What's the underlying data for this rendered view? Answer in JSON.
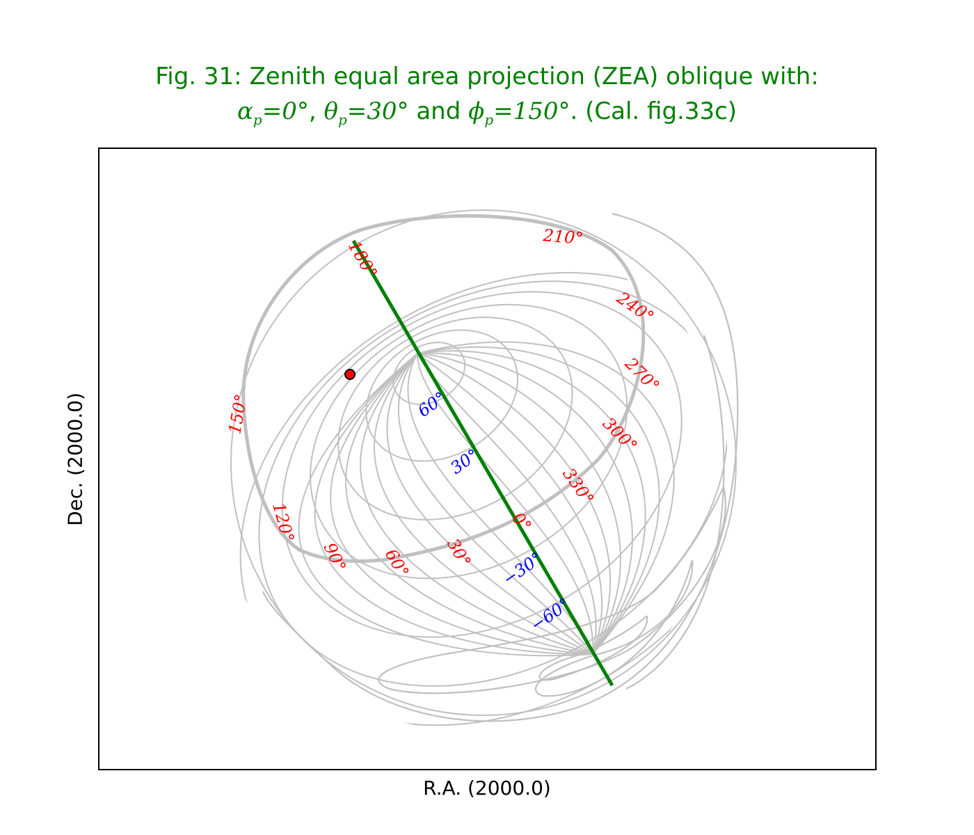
{
  "title_line1": "Fig. 31: Zenith equal area projection (ZEA) oblique with:",
  "title_line2": {
    "alpha": "α",
    "alpha_sub": "p",
    "alpha_eq": "=0°",
    "sep1": ", ",
    "theta": "θ",
    "theta_sub": "p",
    "theta_eq": "=30°",
    "and": " and ",
    "phi": "ϕ",
    "phi_sub": "p",
    "phi_eq": "=150°",
    "tail": ".  (Cal. fig.33c)"
  },
  "xlabel": "R.A. (2000.0)",
  "ylabel": "Dec. (2000.0)",
  "colors": {
    "title": "#008000",
    "graticule": "#c0c0c0",
    "prime_meridian": "#008000",
    "ra_labels": "#ff0000",
    "dec_labels": "#0000ff",
    "marker": "#ff0000"
  },
  "ra_labels": [
    "180°",
    "210°",
    "240°",
    "270°",
    "300°",
    "330°",
    "0°",
    "30°",
    "60°",
    "90°",
    "120°",
    "150°"
  ],
  "dec_labels": [
    "60°",
    "30°",
    "−30°",
    "−60°"
  ],
  "marker": "red-dot"
}
